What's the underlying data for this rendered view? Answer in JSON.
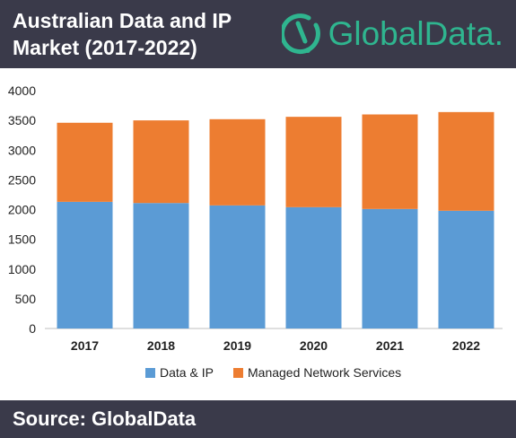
{
  "header": {
    "title_line1": "Australian Data and IP",
    "title_line2": "Market (2017-2022)",
    "logo_text": "GlobalData.",
    "logo_icon": "globaldata-logo-icon"
  },
  "footer": {
    "source": "Source: GlobalData"
  },
  "colors": {
    "header_bg": "#3a3a4a",
    "brand_green": "#2fb58f",
    "series_data_ip": "#5b9bd5",
    "series_managed": "#ed7d31"
  },
  "chart_data": {
    "type": "bar",
    "stacked": true,
    "categories": [
      "2017",
      "2018",
      "2019",
      "2020",
      "2021",
      "2022"
    ],
    "series": [
      {
        "name": "Data & IP",
        "values": [
          2130,
          2110,
          2070,
          2040,
          2010,
          1980
        ],
        "color": "#5b9bd5"
      },
      {
        "name": "Managed Network Services",
        "values": [
          1330,
          1390,
          1450,
          1520,
          1590,
          1660
        ],
        "color": "#ed7d31"
      }
    ],
    "ylim": [
      0,
      4000
    ],
    "yticks": [
      "0",
      "500",
      "1000",
      "1500",
      "2000",
      "2500",
      "3000",
      "3500",
      "4000"
    ],
    "grid": false,
    "legend": "bottom"
  }
}
